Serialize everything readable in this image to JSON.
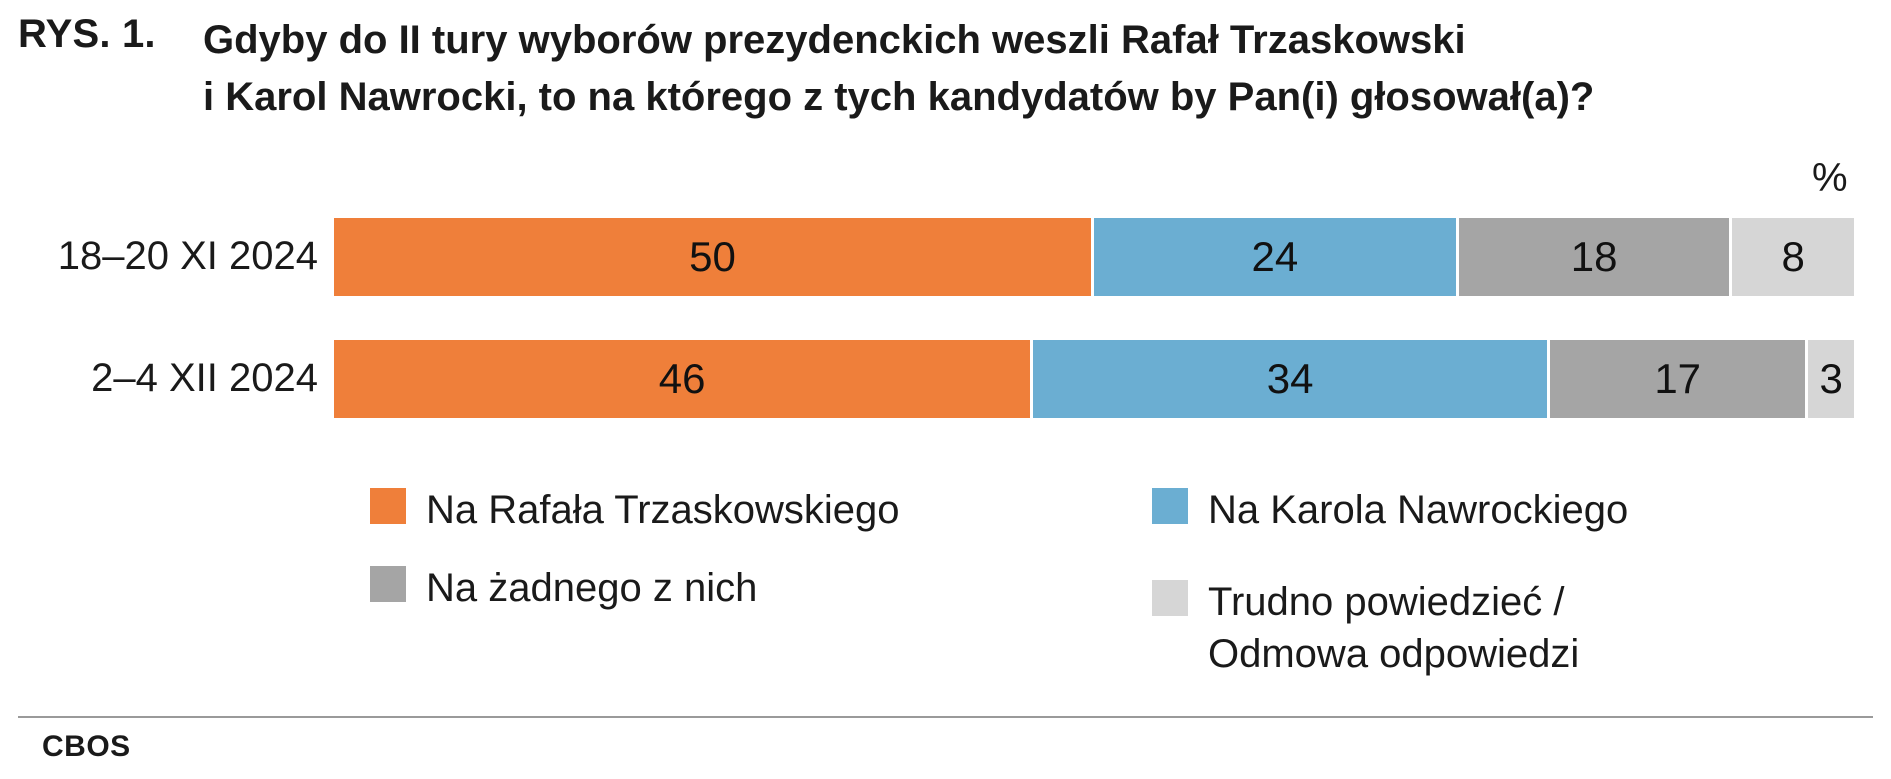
{
  "figure_label": "RYS. 1.",
  "title_lines": [
    "Gdyby do II tury wyborów prezydenckich weszli Rafał Trzaskowski",
    "i Karol Nawrocki, to na którego z tych kandydatów by Pan(i) głosował(a)?"
  ],
  "unit_label": "%",
  "source": "CBOS",
  "chart_data": {
    "type": "bar",
    "orientation": "horizontal",
    "stacked": true,
    "categories": [
      "18–20 XI 2024",
      "2–4 XII 2024"
    ],
    "series": [
      {
        "name": "Na Rafała Trzaskowskiego",
        "values": [
          50,
          46
        ],
        "color": "#EF7F3A"
      },
      {
        "name": "Na Karola Nawrockiego",
        "values": [
          24,
          34
        ],
        "color": "#6BAED2"
      },
      {
        "name": "Na żadnego z nich",
        "values": [
          18,
          17
        ],
        "color": "#A5A5A5"
      },
      {
        "name": "Trudno powiedzieć / Odmowa odpowiedzi",
        "values": [
          8,
          3
        ],
        "color": "#D6D6D6"
      }
    ],
    "xlim": [
      0,
      100
    ],
    "legend_position": "bottom",
    "legend_entries": [
      {
        "lines": [
          "Na Rafała Trzaskowskiego"
        ],
        "color": "#EF7F3A"
      },
      {
        "lines": [
          "Na Karola Nawrockiego"
        ],
        "color": "#6BAED2"
      },
      {
        "lines": [
          "Na żadnego z nich"
        ],
        "color": "#A5A5A5"
      },
      {
        "lines": [
          "Trudno powiedzieć /",
          "Odmowa odpowiedzi"
        ],
        "color": "#D6D6D6"
      }
    ]
  }
}
